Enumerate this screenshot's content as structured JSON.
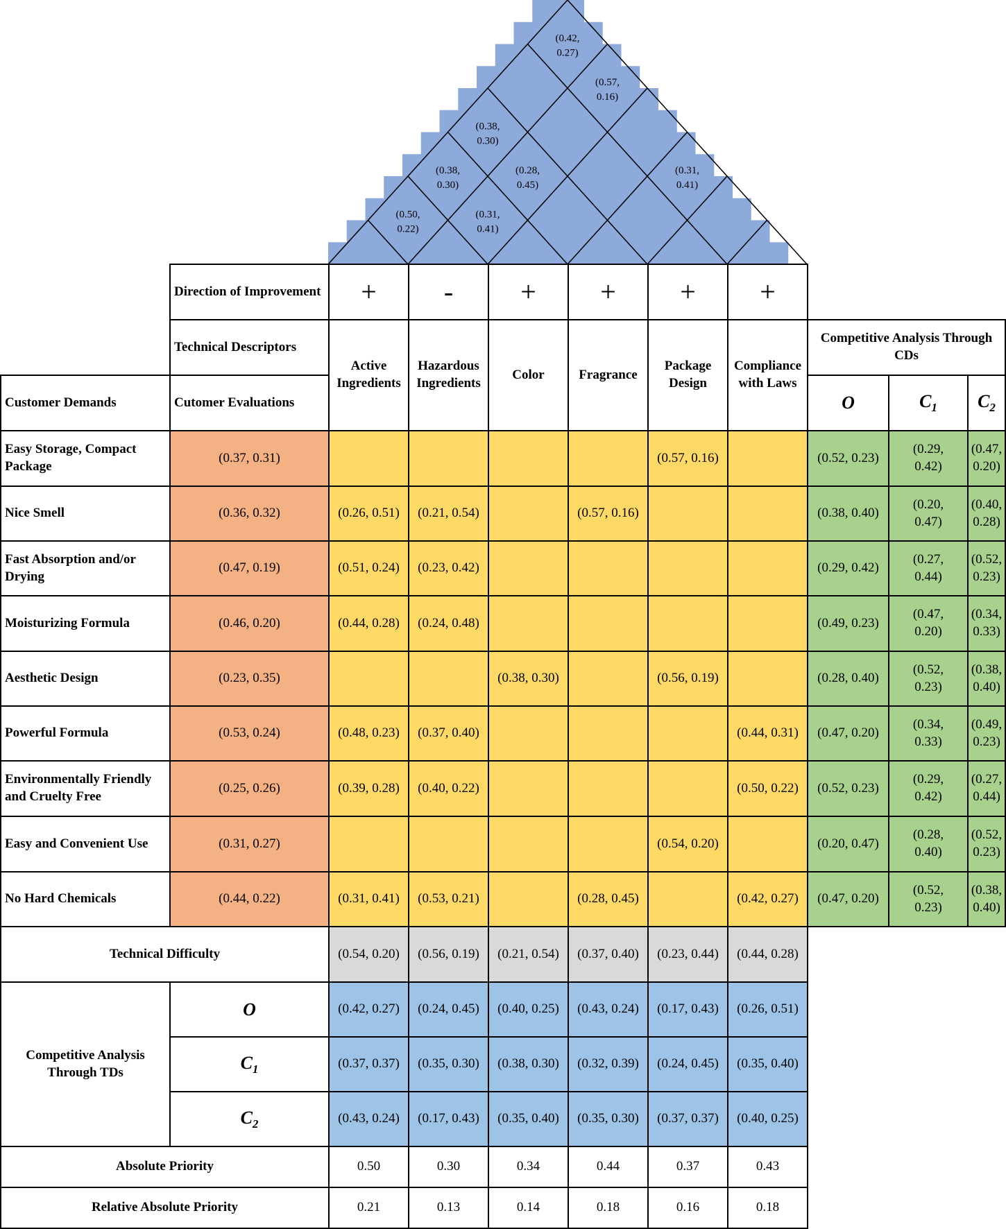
{
  "roof": {
    "correlations": [
      {
        "value": "(0.42,\n0.27)",
        "pair": [
          1,
          6
        ]
      },
      {
        "value": "(0.57,\n0.16)",
        "pair": [
          2,
          6
        ]
      },
      {
        "value": "(0.38,\n0.30)",
        "pair": [
          1,
          4
        ]
      },
      {
        "value": "(0.38,\n0.30)",
        "pair": [
          1,
          3
        ]
      },
      {
        "value": "(0.28,\n0.45)",
        "pair": [
          2,
          4
        ]
      },
      {
        "value": "(0.31,\n0.41)",
        "pair": [
          4,
          6
        ]
      },
      {
        "value": "(0.50,\n0.22)",
        "pair": [
          1,
          2
        ]
      },
      {
        "value": "(0.31,\n0.41)",
        "pair": [
          2,
          3
        ]
      }
    ]
  },
  "header": {
    "direction_label": "Direction of Improvement",
    "technical_descriptors_label": "Technical Descriptors",
    "customer_demands_label": "Customer Demands",
    "customer_evaluations_label": "Cutomer Evaluations",
    "competitive_cd_label": "Competitive Analysis Through CDs",
    "competitors": [
      "O",
      "C1",
      "C2"
    ]
  },
  "technical_descriptors": [
    {
      "name": "Active Ingredients",
      "direction": "+"
    },
    {
      "name": "Hazardous Ingredients",
      "direction": "-"
    },
    {
      "name": "Color",
      "direction": "+"
    },
    {
      "name": "Fragrance",
      "direction": "+"
    },
    {
      "name": "Package Design",
      "direction": "+"
    },
    {
      "name": "Compliance with Laws",
      "direction": "+"
    }
  ],
  "demands": [
    {
      "name": "Easy Storage, Compact Package",
      "evaluation": "(0.37, 0.31)",
      "relations": [
        "",
        "",
        "",
        "",
        "(0.57, 0.16)",
        ""
      ],
      "competitive": [
        "(0.52, 0.23)",
        "(0.29, 0.42)",
        "(0.47, 0.20)"
      ]
    },
    {
      "name": "Nice Smell",
      "evaluation": "(0.36, 0.32)",
      "relations": [
        "(0.26, 0.51)",
        "(0.21, 0.54)",
        "",
        "(0.57, 0.16)",
        "",
        ""
      ],
      "competitive": [
        "(0.38, 0.40)",
        "(0.20, 0.47)",
        "(0.40, 0.28)"
      ]
    },
    {
      "name": "Fast Absorption and/or Drying",
      "evaluation": "(0.47, 0.19)",
      "relations": [
        "(0.51, 0.24)",
        "(0.23, 0.42)",
        "",
        "",
        "",
        ""
      ],
      "competitive": [
        "(0.29, 0.42)",
        "(0.27, 0.44)",
        "(0.52, 0.23)"
      ]
    },
    {
      "name": "Moisturizing Formula",
      "evaluation": "(0.46, 0.20)",
      "relations": [
        "(0.44, 0.28)",
        "(0.24, 0.48)",
        "",
        "",
        "",
        ""
      ],
      "competitive": [
        "(0.49, 0.23)",
        "(0.47, 0.20)",
        "(0.34, 0.33)"
      ]
    },
    {
      "name": "Aesthetic Design",
      "evaluation": "(0.23, 0.35)",
      "relations": [
        "",
        "",
        "(0.38, 0.30)",
        "",
        "(0.56, 0.19)",
        ""
      ],
      "competitive": [
        "(0.28, 0.40)",
        "(0.52, 0.23)",
        "(0.38, 0.40)"
      ]
    },
    {
      "name": "Powerful Formula",
      "evaluation": "(0.53, 0.24)",
      "relations": [
        "(0.48, 0.23)",
        "(0.37, 0.40)",
        "",
        "",
        "",
        "(0.44, 0.31)"
      ],
      "competitive": [
        "(0.47, 0.20)",
        "(0.34, 0.33)",
        "(0.49, 0.23)"
      ]
    },
    {
      "name": "Environmentally Friendly and Cruelty Free",
      "evaluation": "(0.25, 0.26)",
      "relations": [
        "(0.39, 0.28)",
        "(0.40, 0.22)",
        "",
        "",
        "",
        "(0.50, 0.22)"
      ],
      "competitive": [
        "(0.52, 0.23)",
        "(0.29, 0.42)",
        "(0.27, 0.44)"
      ]
    },
    {
      "name": "Easy and Convenient Use",
      "evaluation": "(0.31, 0.27)",
      "relations": [
        "",
        "",
        "",
        "",
        "(0.54, 0.20)",
        ""
      ],
      "competitive": [
        "(0.20, 0.47)",
        "(0.28, 0.40)",
        "(0.52, 0.23)"
      ]
    },
    {
      "name": "No Hard Chemicals",
      "evaluation": "(0.44, 0.22)",
      "relations": [
        "(0.31, 0.41)",
        "(0.53, 0.21)",
        "",
        "(0.28, 0.45)",
        "",
        "(0.42, 0.27)"
      ],
      "competitive": [
        "(0.47, 0.20)",
        "(0.52, 0.23)",
        "(0.38, 0.40)"
      ]
    }
  ],
  "technical_difficulty": {
    "label": "Technical Difficulty",
    "values": [
      "(0.54, 0.20)",
      "(0.56, 0.19)",
      "(0.21, 0.54)",
      "(0.37, 0.40)",
      "(0.23, 0.44)",
      "(0.44, 0.28)"
    ]
  },
  "competitive_td": {
    "label": "Competitive Analysis Through TDs",
    "rows": [
      {
        "competitor": "O",
        "values": [
          "(0.42, 0.27)",
          "(0.24, 0.45)",
          "(0.40, 0.25)",
          "(0.43, 0.24)",
          "(0.17, 0.43)",
          "(0.26, 0.51)"
        ]
      },
      {
        "competitor": "C1",
        "values": [
          "(0.37, 0.37)",
          "(0.35, 0.30)",
          "(0.38, 0.30)",
          "(0.32, 0.39)",
          "(0.24, 0.45)",
          "(0.35, 0.40)"
        ]
      },
      {
        "competitor": "C2",
        "values": [
          "(0.43, 0.24)",
          "(0.17, 0.43)",
          "(0.35, 0.40)",
          "(0.35, 0.30)",
          "(0.37, 0.37)",
          "(0.40, 0.25)"
        ]
      }
    ]
  },
  "absolute_priority": {
    "label": "Absolute Priority",
    "values": [
      "0.50",
      "0.30",
      "0.34",
      "0.44",
      "0.37",
      "0.43"
    ]
  },
  "relative_priority": {
    "label": "Relative Absolute Priority",
    "values": [
      "0.21",
      "0.13",
      "0.14",
      "0.18",
      "0.16",
      "0.18"
    ]
  },
  "colors": {
    "roof": "#8eaadb",
    "evaluation": "#f4b183",
    "relation": "#ffd966",
    "competitive_cd": "#a9d18e",
    "difficulty": "#d9d9d9",
    "competitive_td": "#9dc3e6",
    "border": "#000000"
  }
}
